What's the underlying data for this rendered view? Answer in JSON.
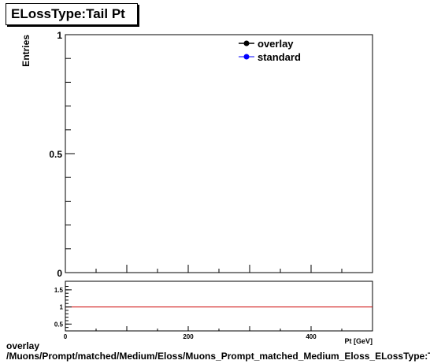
{
  "chart_data": [
    {
      "type": "line",
      "title": "ELossType:Tail Pt",
      "ylabel": "Entries",
      "xlim": [
        0,
        500
      ],
      "ylim": [
        0,
        1
      ],
      "yticks": [
        {
          "value": 0,
          "label": "0"
        },
        {
          "value": 0.5,
          "label": "0.5"
        },
        {
          "value": 1,
          "label": "1"
        }
      ],
      "legend_placement": "top-right",
      "series": [
        {
          "name": "overlay",
          "color": "#000000",
          "marker": "circle",
          "values": []
        },
        {
          "name": "standard",
          "color": "#0000ff",
          "marker": "circle",
          "values": []
        }
      ]
    },
    {
      "type": "line",
      "xlabel": "Pt [GeV]",
      "xlim": [
        0,
        500
      ],
      "ylim": [
        0.3,
        1.75
      ],
      "xticks": [
        {
          "value": 0,
          "label": "0"
        },
        {
          "value": 200,
          "label": "200"
        },
        {
          "value": 400,
          "label": "400"
        }
      ],
      "yticks": [
        {
          "value": 0.5,
          "label": "0.5"
        },
        {
          "value": 1,
          "label": "1"
        },
        {
          "value": 1.5,
          "label": "1.5"
        }
      ],
      "reference_line": {
        "y": 1,
        "color": "#cc0000"
      }
    }
  ],
  "footer": {
    "line1": "overlay",
    "line2": "/Muons/Prompt/matched/Medium/Eloss/Muons_Prompt_matched_Medium_Eloss_ELossType:Tail Pt"
  }
}
